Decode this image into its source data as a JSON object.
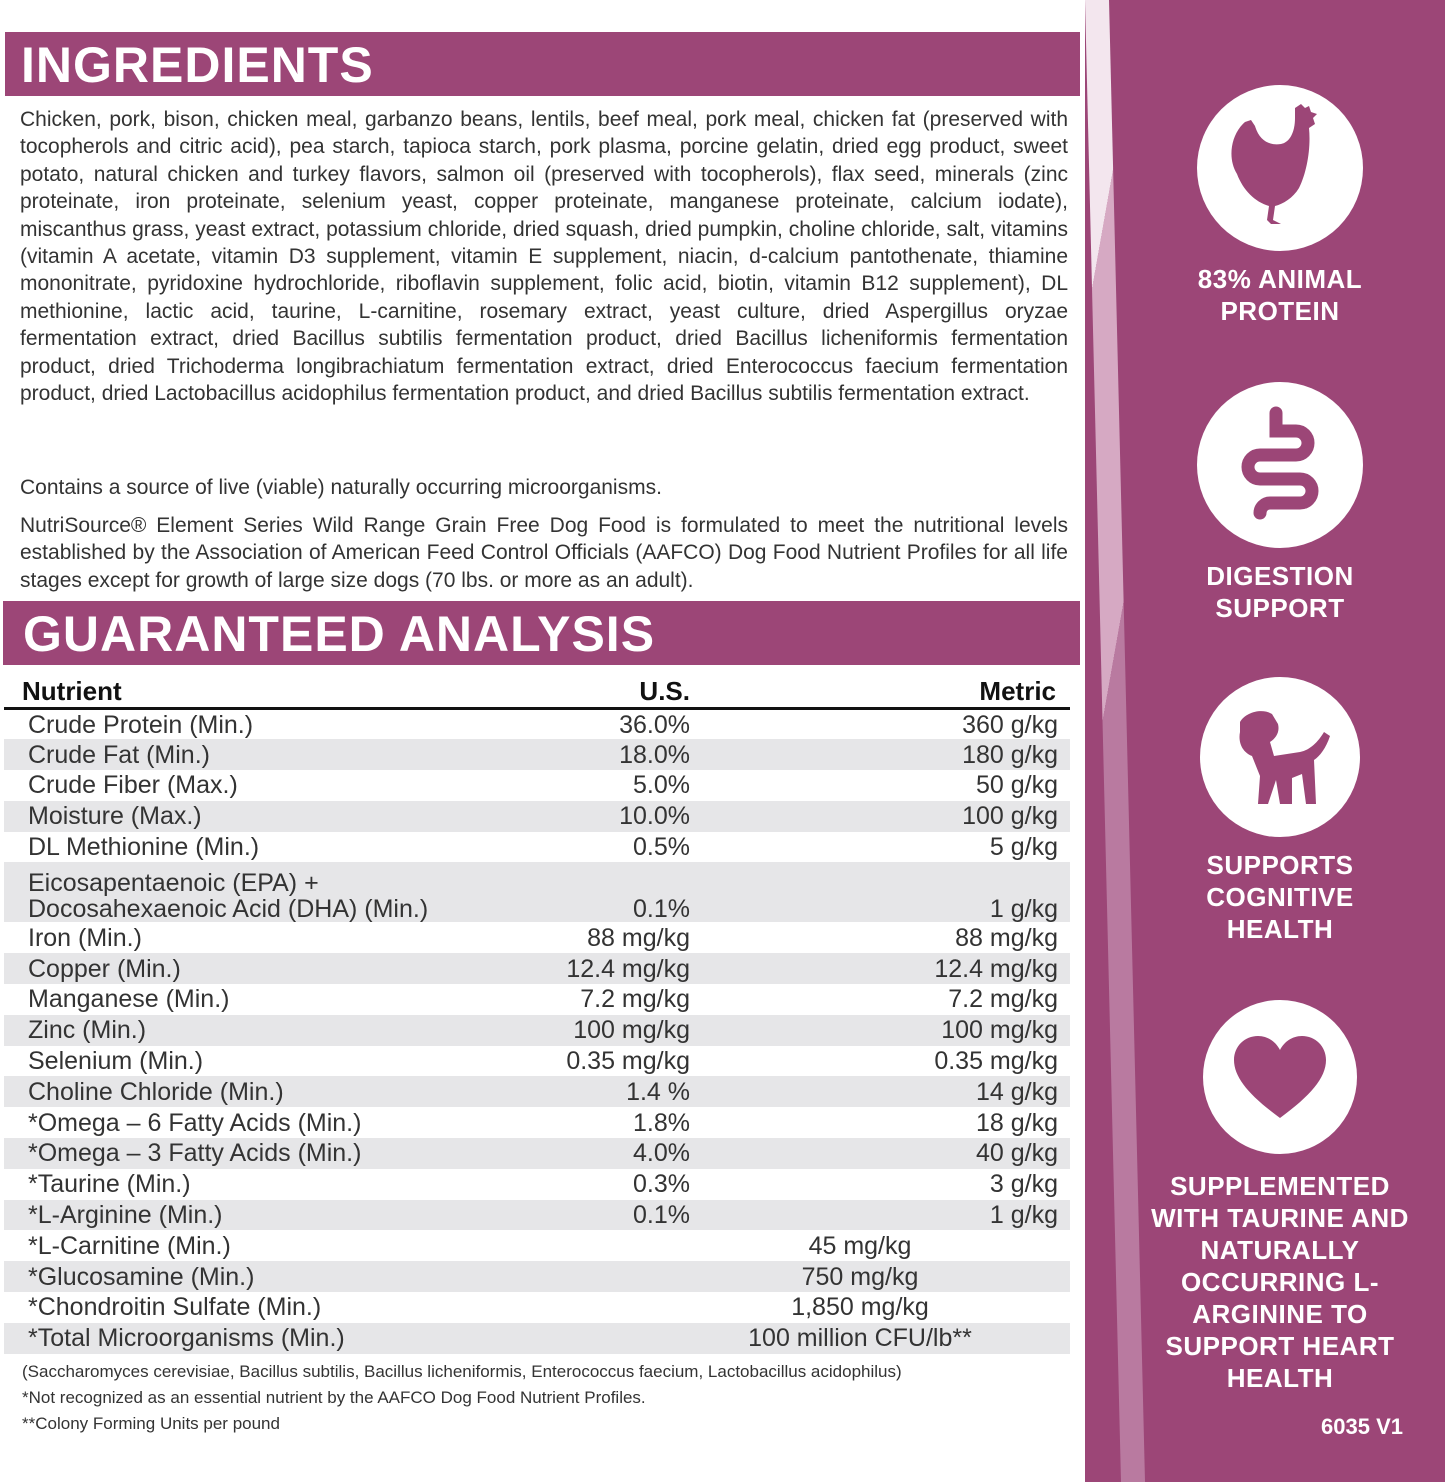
{
  "ingredients": {
    "title": "INGREDIENTS",
    "text": "Chicken, pork, bison, chicken meal, garbanzo beans, lentils, beef meal, pork meal, chicken fat (preserved with tocopherols and citric acid), pea starch, tapioca starch, pork plasma, porcine gelatin, dried egg product, sweet potato, natural chicken and turkey flavors, salmon oil (preserved with tocopherols), flax seed, minerals (zinc proteinate, iron proteinate, selenium yeast, copper proteinate, manganese proteinate, calcium iodate), miscanthus grass, yeast extract, potassium chloride, dried squash, dried pumpkin, choline chloride, salt, vitamins (vitamin A acetate, vitamin D3 supplement, vitamin E supplement, niacin, d-calcium pantothenate, thiamine mononitrate, pyridoxine hydrochloride, riboflavin supplement, folic acid, biotin, vitamin B12 supplement), DL methionine, lactic acid, taurine, L-carnitine, rosemary extract, yeast culture, dried Aspergillus oryzae fermentation extract, dried Bacillus subtilis fermentation product, dried Bacillus licheniformis fermentation product, dried Trichoderma longibrachiatum fermentation extract, dried Enterococcus faecium fermentation product, dried Lactobacillus acidophilus fermentation product, and dried Bacillus subtilis fermentation extract.",
    "live": "Contains a source of live (viable) naturally occurring microorganisms.",
    "aafco": "NutriSource® Element Series Wild Range Grain Free Dog Food is formulated to meet the nutritional levels established by the Association of American Feed Control Officials (AAFCO) Dog Food Nutrient Profiles for all life stages except for growth of large size dogs (70 lbs. or more as an adult)."
  },
  "analysis": {
    "title": "GUARANTEED ANALYSIS",
    "headers": {
      "nutrient": "Nutrient",
      "us": "U.S.",
      "metric": "Metric"
    },
    "rows": [
      {
        "n": "Crude Protein (Min.)",
        "u": "36.0%",
        "m": "360 g/kg"
      },
      {
        "n": "Crude Fat (Min.)",
        "u": "18.0%",
        "m": "180 g/kg"
      },
      {
        "n": "Crude Fiber (Max.)",
        "u": "5.0%",
        "m": "50 g/kg"
      },
      {
        "n": "Moisture (Max.)",
        "u": "10.0%",
        "m": "100 g/kg"
      },
      {
        "n": "DL Methionine (Min.)",
        "u": "0.5%",
        "m": "5 g/kg"
      },
      {
        "n": "Eicosapentaenoic (EPA) + Docosahexaenoic Acid (DHA) (Min.)",
        "u": "0.1%",
        "m": "1 g/kg"
      },
      {
        "n": "Iron (Min.)",
        "u": "88 mg/kg",
        "m": "88 mg/kg"
      },
      {
        "n": "Copper (Min.)",
        "u": "12.4 mg/kg",
        "m": "12.4 mg/kg"
      },
      {
        "n": "Manganese (Min.)",
        "u": "7.2 mg/kg",
        "m": "7.2 mg/kg"
      },
      {
        "n": "Zinc (Min.)",
        "u": "100 mg/kg",
        "m": "100 mg/kg"
      },
      {
        "n": "Selenium (Min.)",
        "u": "0.35 mg/kg",
        "m": "0.35 mg/kg"
      },
      {
        "n": "Choline Chloride (Min.)",
        "u": "1.4 %",
        "m": "14 g/kg"
      },
      {
        "n": "*Omega – 6 Fatty Acids (Min.)",
        "u": "1.8%",
        "m": "18 g/kg"
      },
      {
        "n": "*Omega – 3 Fatty Acids (Min.)",
        "u": "4.0%",
        "m": "40 g/kg"
      },
      {
        "n": "*Taurine (Min.)",
        "u": "0.3%",
        "m": "3 g/kg"
      },
      {
        "n": "*L-Arginine (Min.)",
        "u": "0.1%",
        "m": "1 g/kg"
      },
      {
        "n": "*L-Carnitine (Min.)",
        "c": "45 mg/kg"
      },
      {
        "n": "*Glucosamine (Min.)",
        "c": "750 mg/kg"
      },
      {
        "n": "*Chondroitin Sulfate (Min.)",
        "c": "1,850 mg/kg"
      },
      {
        "n": "*Total Microorganisms (Min.)",
        "c": "100 million CFU/lb**"
      }
    ],
    "footnotes": [
      "(Saccharomyces cerevisiae, Bacillus subtilis, Bacillus licheniformis, Enterococcus faecium, Lactobacillus acidophilus)",
      "*Not recognized as an essential nutrient by the AAFCO Dog Food Nutrient Profiles.",
      "**Colony Forming Units per pound"
    ]
  },
  "features": [
    {
      "icon": "chicken-icon",
      "label": "83% ANIMAL PROTEIN"
    },
    {
      "icon": "intestine-icon",
      "label": "DIGESTION SUPPORT"
    },
    {
      "icon": "puppy-icon",
      "label": "SUPPORTS COGNITIVE HEALTH"
    },
    {
      "icon": "heart-icon",
      "label": "SUPPLEMENTED WITH TAURINE AND NATURALLY OCCURRING L-ARGININE TO SUPPORT HEART HEALTH"
    }
  ],
  "code": "6035 V1",
  "colors": {
    "brand": "#9c4677",
    "row_alt": "#e6e6e8"
  }
}
